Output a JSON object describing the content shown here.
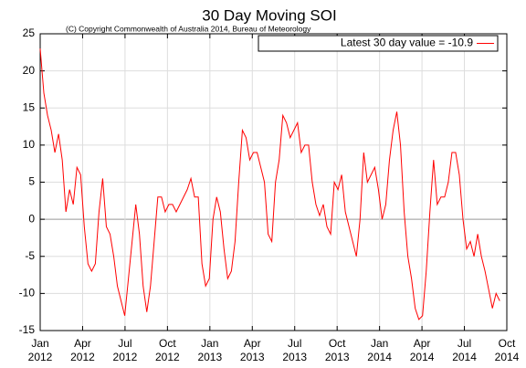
{
  "chart_data": {
    "type": "line",
    "title": "30 Day Moving SOI",
    "subtitle": "(C) Copyright Commonwealth of Australia 2014, Bureau of Meteorology",
    "x": [
      0,
      0.26,
      0.52,
      0.78,
      1.04,
      1.3,
      1.56,
      1.82,
      2.08,
      2.34,
      2.6,
      2.86,
      3.12,
      3.38,
      3.64,
      3.9,
      4.16,
      4.42,
      4.68,
      4.94,
      5.2,
      5.46,
      5.72,
      5.98,
      6.24,
      6.5,
      6.76,
      7.02,
      7.28,
      7.54,
      7.8,
      8.06,
      8.32,
      8.58,
      8.84,
      9.1,
      9.36,
      9.62,
      9.88,
      10.14,
      10.4,
      10.66,
      10.92,
      11.18,
      11.44,
      11.7,
      11.96,
      12.22,
      12.48,
      12.74,
      13,
      13.26,
      13.52,
      13.78,
      14.04,
      14.3,
      14.56,
      14.82,
      15.08,
      15.34,
      15.6,
      15.86,
      16.12,
      16.38,
      16.64,
      16.9,
      17.16,
      17.42,
      17.68,
      17.94,
      18.2,
      18.46,
      18.72,
      18.98,
      19.24,
      19.5,
      19.76,
      20.02,
      20.28,
      20.54,
      20.8,
      21.06,
      21.32,
      21.58,
      21.84,
      22.1,
      22.36,
      22.62,
      22.88,
      23.14,
      23.4,
      23.66,
      23.92,
      24.18,
      24.44,
      24.7,
      24.96,
      25.22,
      25.48,
      25.74,
      26,
      26.26,
      26.52,
      26.78,
      27.04,
      27.3,
      27.56,
      27.82,
      28.08,
      28.34,
      28.6,
      28.86,
      29.12,
      29.38,
      29.64,
      29.9,
      30.16,
      30.42,
      30.68,
      30.94,
      31.2,
      31.46,
      31.72,
      31.98,
      32.24,
      32.5
    ],
    "series": [
      {
        "name": "Latest 30 day value = -10.9",
        "color": "#ff0000",
        "values": [
          23,
          17,
          14,
          12,
          9,
          11.5,
          8,
          1,
          4,
          2,
          7,
          6,
          -1,
          -6,
          -7,
          -6,
          1,
          5.5,
          -1,
          -2,
          -5,
          -9,
          -11,
          -13,
          -8,
          -3,
          2,
          -2,
          -9,
          -12.5,
          -9,
          -3,
          3,
          3,
          1,
          2,
          2,
          1,
          2,
          3,
          4,
          5.5,
          3,
          3,
          -6,
          -9,
          -8,
          0,
          3,
          1,
          -4,
          -8,
          -7,
          -3,
          5,
          12,
          11,
          8,
          9,
          9,
          7,
          5,
          -2,
          -3,
          5,
          8,
          14,
          13,
          11,
          12,
          13,
          9,
          10,
          10,
          5,
          2,
          0.5,
          2,
          -1,
          -2,
          5,
          4,
          6,
          1,
          -1,
          -3,
          -5,
          0,
          9,
          5,
          6,
          7,
          4,
          0,
          2,
          8,
          12,
          14.5,
          10,
          1,
          -5,
          -8,
          -12,
          -13.5,
          -13,
          -7,
          1,
          8,
          2,
          3,
          3,
          5,
          9,
          9,
          6,
          0,
          -4,
          -3,
          -5,
          -2,
          -5,
          -7,
          -9.5,
          -12,
          -10,
          -11
        ]
      }
    ],
    "xlim": [
      0,
      33
    ],
    "xticks": [
      {
        "value": 0,
        "label": "Jan 2012"
      },
      {
        "value": 3,
        "label": "Apr 2012"
      },
      {
        "value": 6,
        "label": "Jul 2012"
      },
      {
        "value": 9,
        "label": "Oct 2012"
      },
      {
        "value": 12,
        "label": "Jan 2013"
      },
      {
        "value": 15,
        "label": "Apr 2013"
      },
      {
        "value": 18,
        "label": "Jul 2013"
      },
      {
        "value": 21,
        "label": "Oct 2013"
      },
      {
        "value": 24,
        "label": "Jan 2014"
      },
      {
        "value": 27,
        "label": "Apr 2014"
      },
      {
        "value": 30,
        "label": "Jul 2014"
      },
      {
        "value": 33,
        "label": "Oct 2014"
      }
    ],
    "ylim": [
      -15,
      25
    ],
    "yticks": [
      -15,
      -10,
      -5,
      0,
      5,
      10,
      15,
      20,
      25
    ],
    "grid": true,
    "legend": "upper right"
  }
}
